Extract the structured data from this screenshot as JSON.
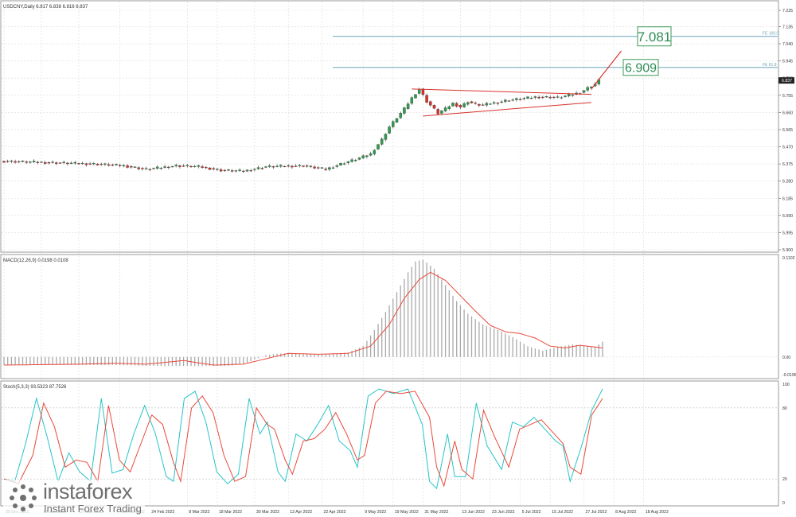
{
  "colors": {
    "bull": "#2e9b4e",
    "bear": "#d7312c",
    "fib": "#6aa5b7",
    "signal": "#e84a3a",
    "k": "#27c4c8",
    "d": "#e84a3a",
    "hist": "#a9a9a9",
    "grid": "#dcdcdc",
    "axis": "#555555"
  },
  "chart_data": [
    {
      "type": "candlestick",
      "title": "USDCNY,Daily  6.817 6.838 6.816 6.837",
      "ylim": [
        5.9,
        7.225
      ],
      "y_ticks": [
        "7.225",
        "7.135",
        "7.040",
        "6.945",
        "6.850",
        "6.755",
        "6.660",
        "6.565",
        "6.470",
        "6.375",
        "6.280",
        "6.185",
        "6.090",
        "5.995",
        "5.900"
      ],
      "current_price": "6.837",
      "x_labels": [
        "30 Dec 2021",
        "12 Jan 2022",
        "27 Jan 2022",
        "14 Feb 2022",
        "24 Feb 2022",
        "8 Mar 2022",
        "18 Mar 2022",
        "30 Mar 2022",
        "12 Apr 2022",
        "22 Apr 2022",
        "9 May 2022",
        "19 May 2022",
        "31 May 2022",
        "13 Jun 2022",
        "23 Jun 2022",
        "5 Jul 2022",
        "15 Jul 2022",
        "27 Jul 2022",
        "8 Aug 2022",
        "18 Aug 2022"
      ],
      "fib_levels": [
        {
          "label": "FE 100.0",
          "value": 7.081
        },
        {
          "label": "FE 61.8",
          "value": 6.909
        }
      ],
      "target_boxes": [
        "7.081",
        "6.909"
      ],
      "projection": {
        "from": 6.79,
        "to": 7.0
      },
      "triangle": {
        "upper": [
          6.79,
          6.76
        ],
        "lower": [
          6.64,
          6.715
        ]
      },
      "close_path": [
        [
          0,
          6.39
        ],
        [
          8,
          6.385
        ],
        [
          16,
          6.38
        ],
        [
          24,
          6.375
        ],
        [
          32,
          6.365
        ],
        [
          38,
          6.345
        ],
        [
          46,
          6.365
        ],
        [
          52,
          6.36
        ],
        [
          58,
          6.34
        ],
        [
          64,
          6.335
        ],
        [
          70,
          6.36
        ],
        [
          80,
          6.365
        ],
        [
          86,
          6.345
        ],
        [
          90,
          6.375
        ],
        [
          94,
          6.4
        ],
        [
          98,
          6.43
        ],
        [
          101,
          6.51
        ],
        [
          103,
          6.58
        ],
        [
          105,
          6.63
        ],
        [
          107,
          6.68
        ],
        [
          109,
          6.74
        ],
        [
          111,
          6.79
        ],
        [
          113,
          6.72
        ],
        [
          114,
          6.7
        ],
        [
          116,
          6.655
        ],
        [
          118,
          6.68
        ],
        [
          120,
          6.71
        ],
        [
          122,
          6.69
        ],
        [
          124,
          6.72
        ],
        [
          126,
          6.705
        ],
        [
          128,
          6.7
        ],
        [
          130,
          6.71
        ],
        [
          132,
          6.715
        ],
        [
          134,
          6.725
        ],
        [
          136,
          6.73
        ],
        [
          138,
          6.735
        ],
        [
          140,
          6.74
        ],
        [
          142,
          6.745
        ],
        [
          144,
          6.745
        ],
        [
          146,
          6.745
        ],
        [
          148,
          6.742
        ],
        [
          150,
          6.75
        ],
        [
          152,
          6.76
        ],
        [
          154,
          6.77
        ],
        [
          156,
          6.795
        ],
        [
          158,
          6.817
        ],
        [
          159,
          6.837
        ]
      ]
    },
    {
      "type": "bar",
      "title": "MACD(12,26,9) 0.0198 0.0108",
      "ylim": [
        -0.0196,
        0.1102
      ],
      "y_ticks": [
        "0.1102",
        "0.00",
        "-0.0196"
      ],
      "histogram_path": [
        [
          0,
          -0.009
        ],
        [
          20,
          -0.009
        ],
        [
          30,
          -0.009
        ],
        [
          40,
          -0.01
        ],
        [
          50,
          -0.01
        ],
        [
          60,
          -0.01
        ],
        [
          64,
          -0.008
        ],
        [
          70,
          0.002
        ],
        [
          74,
          0.004
        ],
        [
          80,
          0.004
        ],
        [
          86,
          0.003
        ],
        [
          92,
          0.005
        ],
        [
          96,
          0.012
        ],
        [
          99,
          0.03
        ],
        [
          102,
          0.05
        ],
        [
          105,
          0.072
        ],
        [
          108,
          0.094
        ],
        [
          110,
          0.106
        ],
        [
          112,
          0.108
        ],
        [
          115,
          0.098
        ],
        [
          118,
          0.08
        ],
        [
          121,
          0.062
        ],
        [
          124,
          0.048
        ],
        [
          128,
          0.036
        ],
        [
          132,
          0.03
        ],
        [
          136,
          0.022
        ],
        [
          140,
          0.012
        ],
        [
          144,
          0.007
        ],
        [
          148,
          0.011
        ],
        [
          152,
          0.014
        ],
        [
          156,
          0.012
        ],
        [
          158,
          0.011
        ],
        [
          160,
          0.017
        ]
      ],
      "signal_path": [
        [
          0,
          -0.009
        ],
        [
          20,
          -0.008
        ],
        [
          30,
          -0.007
        ],
        [
          38,
          -0.008
        ],
        [
          48,
          -0.004
        ],
        [
          56,
          -0.009
        ],
        [
          64,
          -0.008
        ],
        [
          70,
          -0.002
        ],
        [
          76,
          0.004
        ],
        [
          84,
          0.003
        ],
        [
          92,
          0.004
        ],
        [
          98,
          0.012
        ],
        [
          103,
          0.036
        ],
        [
          107,
          0.065
        ],
        [
          111,
          0.086
        ],
        [
          114,
          0.094
        ],
        [
          118,
          0.085
        ],
        [
          122,
          0.068
        ],
        [
          126,
          0.051
        ],
        [
          130,
          0.035
        ],
        [
          134,
          0.028
        ],
        [
          138,
          0.026
        ],
        [
          142,
          0.021
        ],
        [
          146,
          0.012
        ],
        [
          150,
          0.01
        ],
        [
          154,
          0.013
        ],
        [
          158,
          0.011
        ],
        [
          160,
          0.01
        ]
      ]
    },
    {
      "type": "line",
      "title": "Stoch(5,3,3) 93.5323 87.7526",
      "ylim": [
        0,
        100
      ],
      "y_ticks": [
        "100",
        "80",
        "20",
        "0"
      ],
      "series": [
        {
          "name": "",
          "path": [
            [
              0,
              20
            ],
            [
              3,
              18
            ],
            [
              6,
              50
            ],
            [
              9,
              88
            ],
            [
              12,
              55
            ],
            [
              15,
              18
            ],
            [
              18,
              42
            ],
            [
              21,
              26
            ],
            [
              24,
              18
            ],
            [
              27,
              88
            ],
            [
              30,
              25
            ],
            [
              33,
              28
            ],
            [
              36,
              58
            ],
            [
              39,
              82
            ],
            [
              42,
              58
            ],
            [
              45,
              22
            ],
            [
              47,
              18
            ],
            [
              50,
              88
            ],
            [
              53,
              94
            ],
            [
              56,
              68
            ],
            [
              59,
              26
            ],
            [
              62,
              16
            ],
            [
              65,
              24
            ],
            [
              68,
              88
            ],
            [
              71,
              58
            ],
            [
              73,
              68
            ],
            [
              76,
              26
            ],
            [
              78,
              18
            ],
            [
              81,
              58
            ],
            [
              84,
              52
            ],
            [
              87,
              66
            ],
            [
              90,
              82
            ],
            [
              93,
              52
            ],
            [
              96,
              44
            ],
            [
              98,
              30
            ],
            [
              101,
              90
            ],
            [
              104,
              96
            ],
            [
              108,
              92
            ],
            [
              112,
              96
            ],
            [
              116,
              66
            ],
            [
              118,
              18
            ],
            [
              120,
              12
            ],
            [
              123,
              58
            ],
            [
              125,
              22
            ],
            [
              128,
              22
            ],
            [
              131,
              84
            ],
            [
              134,
              48
            ],
            [
              138,
              28
            ],
            [
              141,
              68
            ],
            [
              144,
              64
            ],
            [
              147,
              72
            ],
            [
              150,
              62
            ],
            [
              153,
              52
            ],
            [
              155,
              48
            ],
            [
              157,
              18
            ],
            [
              160,
              46
            ],
            [
              163,
              78
            ],
            [
              166,
              96
            ]
          ]
        },
        {
          "name": "",
          "path": [
            [
              0,
              20
            ],
            [
              4,
              16
            ],
            [
              8,
              40
            ],
            [
              11,
              84
            ],
            [
              14,
              64
            ],
            [
              17,
              30
            ],
            [
              20,
              36
            ],
            [
              23,
              34
            ],
            [
              26,
              18
            ],
            [
              29,
              82
            ],
            [
              32,
              36
            ],
            [
              35,
              26
            ],
            [
              38,
              50
            ],
            [
              41,
              74
            ],
            [
              44,
              66
            ],
            [
              47,
              34
            ],
            [
              49,
              18
            ],
            [
              52,
              80
            ],
            [
              55,
              90
            ],
            [
              58,
              76
            ],
            [
              61,
              40
            ],
            [
              64,
              18
            ],
            [
              67,
              22
            ],
            [
              70,
              80
            ],
            [
              73,
              66
            ],
            [
              75,
              62
            ],
            [
              78,
              36
            ],
            [
              80,
              24
            ],
            [
              83,
              52
            ],
            [
              86,
              54
            ],
            [
              89,
              62
            ],
            [
              92,
              76
            ],
            [
              95,
              58
            ],
            [
              98,
              36
            ],
            [
              100,
              40
            ],
            [
              103,
              84
            ],
            [
              106,
              94
            ],
            [
              110,
              92
            ],
            [
              114,
              94
            ],
            [
              118,
              72
            ],
            [
              120,
              30
            ],
            [
              122,
              14
            ],
            [
              125,
              52
            ],
            [
              127,
              28
            ],
            [
              130,
              20
            ],
            [
              133,
              78
            ],
            [
              136,
              56
            ],
            [
              140,
              30
            ],
            [
              143,
              62
            ],
            [
              146,
              66
            ],
            [
              149,
              70
            ],
            [
              152,
              60
            ],
            [
              155,
              50
            ],
            [
              157,
              30
            ],
            [
              160,
              24
            ],
            [
              163,
              74
            ],
            [
              166,
              88
            ]
          ]
        }
      ]
    }
  ],
  "watermark": {
    "name": "instaforex",
    "tagline": "Instant Forex Trading"
  }
}
